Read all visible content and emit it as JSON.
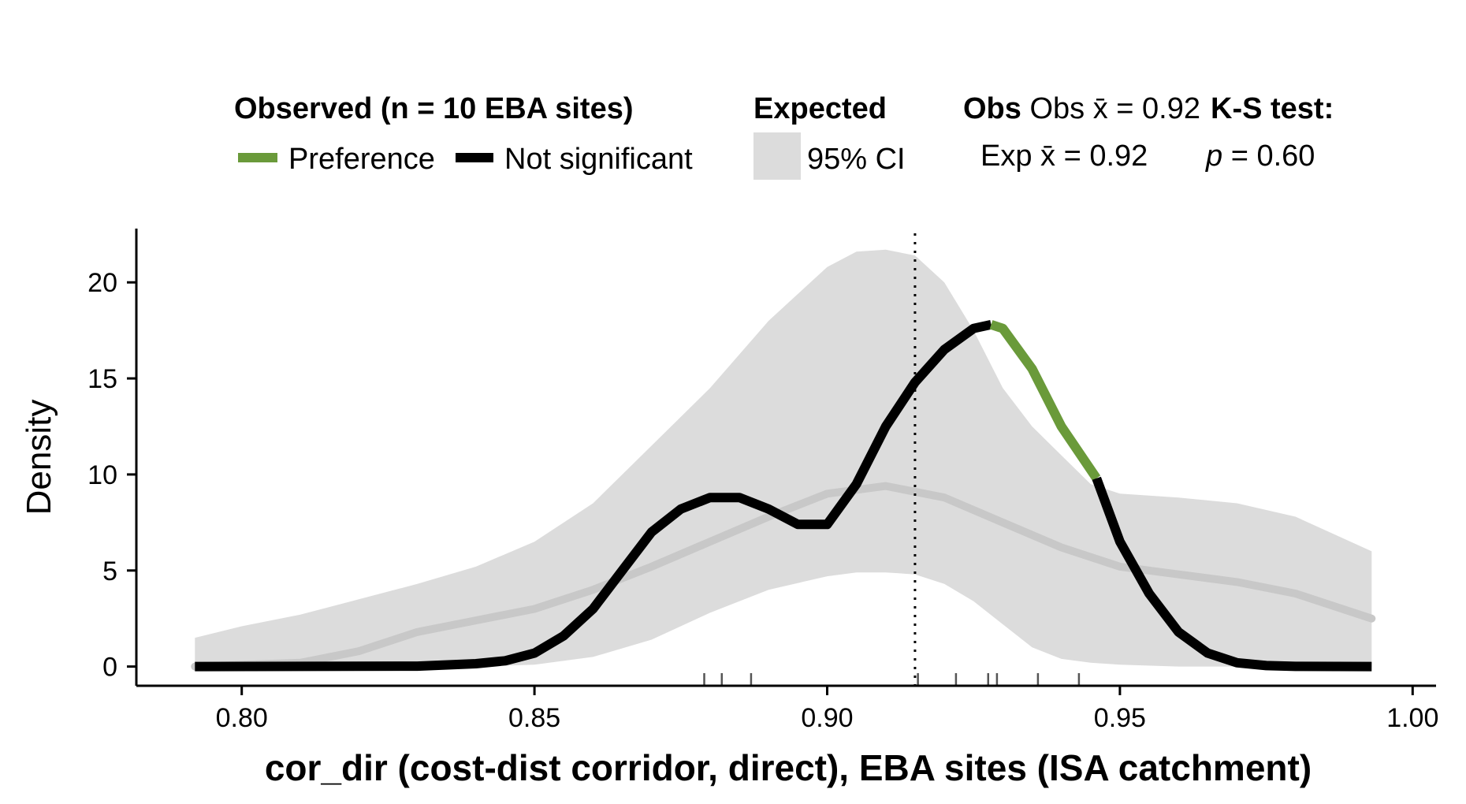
{
  "legend": {
    "observed_title": "Observed (n = 10 EBA sites)",
    "preference_label": "Preference",
    "not_significant_label": "Not significant",
    "expected_title": "Expected",
    "ci_label": "95% CI",
    "obs_mean_label": "Obs x̄ = 0.92",
    "exp_mean_label": "Exp x̄ = 0.92",
    "ks_title": "K-S test:",
    "ks_p_symbol": "p",
    "ks_p_value": " = 0.60"
  },
  "colors": {
    "preference": "#6a9a3a",
    "not_significant": "#000000",
    "ci_band": "#dcdcdc",
    "expected_mean": "#c8c8c8"
  },
  "chart_data": {
    "type": "line",
    "xlabel": "cor_dir (cost-dist corridor, direct), EBA sites (ISA catchment)",
    "ylabel": "Density",
    "xlim": [
      0.782,
      1.004
    ],
    "ylim": [
      -1.0,
      22.8
    ],
    "x_ticks": [
      "0.80",
      "0.85",
      "0.90",
      "0.95",
      "1.00"
    ],
    "y_ticks": [
      "0",
      "5",
      "10",
      "15",
      "20"
    ],
    "observed_mean": 0.915,
    "rug": [
      0.879,
      0.882,
      0.887,
      0.9155,
      0.922,
      0.9275,
      0.929,
      0.936,
      0.943
    ],
    "ci_band": {
      "x": [
        0.792,
        0.8,
        0.81,
        0.82,
        0.83,
        0.84,
        0.85,
        0.86,
        0.87,
        0.88,
        0.89,
        0.9,
        0.905,
        0.91,
        0.915,
        0.92,
        0.925,
        0.93,
        0.935,
        0.94,
        0.945,
        0.95,
        0.96,
        0.97,
        0.98,
        0.993
      ],
      "upper": [
        1.5,
        2.1,
        2.7,
        3.5,
        4.3,
        5.2,
        6.5,
        8.5,
        11.5,
        14.5,
        18.0,
        20.8,
        21.6,
        21.7,
        21.4,
        20.0,
        17.5,
        14.5,
        12.5,
        11.0,
        9.5,
        9.0,
        8.8,
        8.5,
        7.8,
        6.0
      ],
      "lower": [
        0,
        0,
        0,
        0,
        0,
        0,
        0.1,
        0.5,
        1.4,
        2.8,
        4.0,
        4.7,
        4.9,
        4.9,
        4.8,
        4.3,
        3.4,
        2.2,
        1.0,
        0.4,
        0.2,
        0.1,
        0,
        0,
        0,
        0
      ]
    },
    "series": [
      {
        "name": "Expected",
        "x": [
          0.792,
          0.81,
          0.82,
          0.83,
          0.84,
          0.85,
          0.86,
          0.87,
          0.88,
          0.89,
          0.9,
          0.91,
          0.92,
          0.93,
          0.94,
          0.95,
          0.96,
          0.97,
          0.98,
          0.993
        ],
        "y": [
          0,
          0.2,
          0.8,
          1.8,
          2.4,
          3.0,
          4.0,
          5.2,
          6.5,
          7.8,
          9.0,
          9.4,
          8.8,
          7.5,
          6.2,
          5.2,
          4.8,
          4.4,
          3.8,
          2.5
        ]
      },
      {
        "name": "Observed",
        "x": [
          0.792,
          0.83,
          0.84,
          0.845,
          0.85,
          0.855,
          0.86,
          0.865,
          0.87,
          0.875,
          0.88,
          0.885,
          0.89,
          0.895,
          0.9,
          0.905,
          0.91,
          0.915,
          0.92,
          0.925,
          0.928,
          0.93,
          0.935,
          0.94,
          0.946,
          0.95,
          0.955,
          0.96,
          0.965,
          0.97,
          0.975,
          0.98,
          0.993
        ],
        "y": [
          0,
          0.02,
          0.15,
          0.3,
          0.7,
          1.6,
          3.0,
          5.0,
          7.0,
          8.2,
          8.8,
          8.8,
          8.2,
          7.4,
          7.4,
          9.5,
          12.5,
          14.8,
          16.5,
          17.6,
          17.8,
          17.6,
          15.5,
          12.5,
          9.8,
          6.5,
          3.8,
          1.8,
          0.7,
          0.2,
          0.05,
          0.01,
          0
        ],
        "preference_range": [
          0.928,
          0.946
        ]
      }
    ]
  }
}
